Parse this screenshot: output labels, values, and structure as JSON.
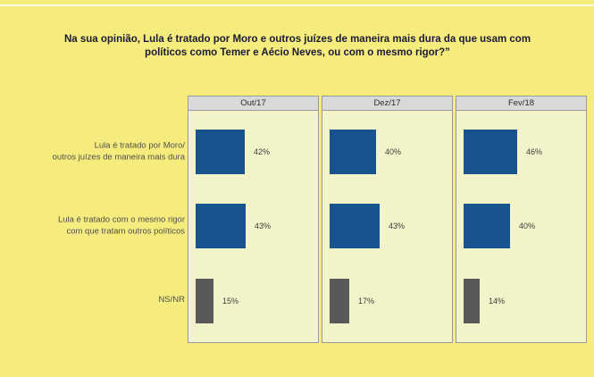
{
  "title": {
    "text": "Na sua opinião, Lula é tratado por Moro e outros juízes de maneira mais dura da que usam com políticos como Temer e Aécio Neves, ou com o mesmo rigor?”"
  },
  "colors": {
    "background": "#f5ec7d",
    "top_line": "#fbfbe2",
    "panel_bg": "#f3f3ca",
    "panel_border": "#9a9a9a",
    "header_bg": "#d9d9d9",
    "bar_blue": "#17538f",
    "bar_gray": "#595959",
    "title_text": "#1b1b36",
    "category_text": "#4f4f4f",
    "value_text": "#3d3d3d"
  },
  "chart_data": {
    "type": "bar",
    "orientation": "horizontal",
    "title": "Na sua opinião, Lula é tratado por Moro e outros juízes de maneira mais dura da que usam com políticos como Temer e Aécio Neves, ou com o mesmo rigor?”",
    "categories": [
      "Lula é tratado por Moro/ outros juízes de maneira mais dura",
      "Lula é tratado com o mesmo rigor com que tratam outros políticos",
      "NS/NR"
    ],
    "category_lines": [
      [
        "Lula é tratado por Moro/",
        "outros juízes de maneira mais dura"
      ],
      [
        "Lula é tratado com o mesmo rigor",
        "com que tratam outros políticos"
      ],
      [
        "NS/NR"
      ]
    ],
    "series": [
      {
        "name": "Out/17",
        "values": [
          42,
          43,
          15
        ]
      },
      {
        "name": "Dez/17",
        "values": [
          40,
          43,
          17
        ]
      },
      {
        "name": "Fev/18",
        "values": [
          46,
          40,
          14
        ]
      }
    ],
    "unit": "%",
    "xlim": [
      0,
      100
    ],
    "grid": false,
    "legend": "none",
    "bar_colors_by_row": [
      "#17538f",
      "#17538f",
      "#595959"
    ]
  }
}
